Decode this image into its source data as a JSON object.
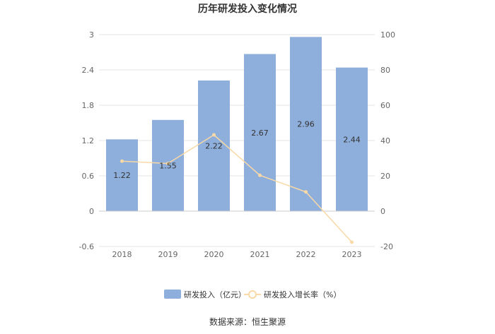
{
  "chart_data": {
    "type": "bar",
    "title": "历年研发投入变化情况",
    "categories": [
      "2018",
      "2019",
      "2020",
      "2021",
      "2022",
      "2023"
    ],
    "series": [
      {
        "name": "研发投入（亿元）",
        "type": "bar",
        "axis": "left",
        "color": "#8eaedb",
        "values": [
          1.22,
          1.55,
          2.22,
          2.67,
          2.96,
          2.44
        ],
        "labels": [
          "1.22",
          "1.55",
          "2.22",
          "2.67",
          "2.96",
          "2.44"
        ]
      },
      {
        "name": "研发投入增长率（%）",
        "type": "line",
        "axis": "right",
        "color": "#f9d9a6",
        "values": [
          28.3,
          27.0,
          43.2,
          20.3,
          10.9,
          -17.6
        ]
      }
    ],
    "y_left": {
      "min": -0.6,
      "max": 3,
      "ticks": [
        "-0.6",
        "0",
        "0.6",
        "1.2",
        "1.8",
        "2.4",
        "3"
      ]
    },
    "y_right": {
      "min": -20,
      "max": 100,
      "ticks": [
        "-20",
        "0",
        "20",
        "40",
        "60",
        "80",
        "100"
      ]
    },
    "grid": true,
    "legend_position": "bottom-center",
    "source": "数据来源：恒生聚源"
  }
}
